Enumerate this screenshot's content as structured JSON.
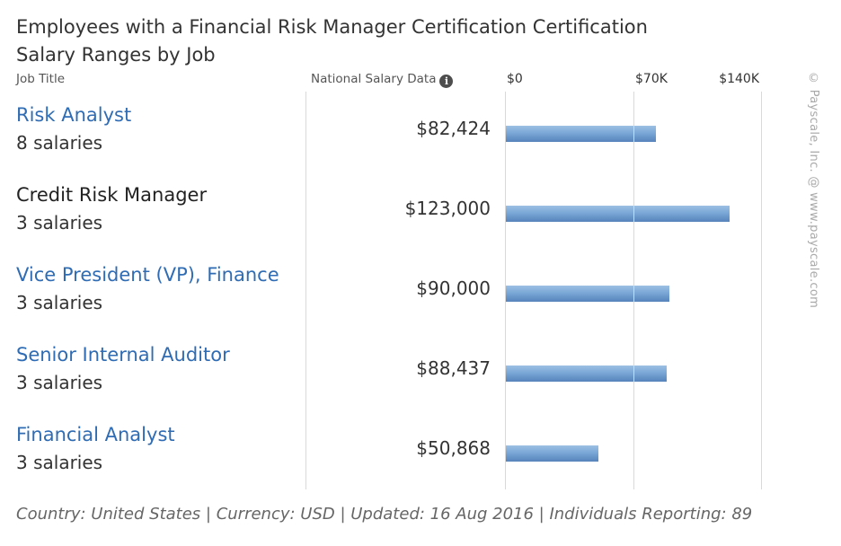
{
  "chart_data": {
    "type": "bar",
    "title": "Employees with a Financial Risk Manager Certification Certification",
    "subtitle": "Salary Ranges by Job",
    "column_headers": {
      "job": "Job Title",
      "salary": "National Salary Data"
    },
    "categories": [
      "Risk Analyst",
      "Credit Risk Manager",
      "Vice President (VP), Finance",
      "Senior Internal Auditor",
      "Financial Analyst"
    ],
    "counts": [
      "8 salaries",
      "3 salaries",
      "3 salaries",
      "3 salaries",
      "3 salaries"
    ],
    "linked": [
      true,
      false,
      true,
      true,
      true
    ],
    "values": [
      82424,
      123000,
      90000,
      88437,
      50868
    ],
    "value_labels": [
      "$82,424",
      "$123,000",
      "$90,000",
      "$88,437",
      "$50,868"
    ],
    "xlim": [
      0,
      140000
    ],
    "x_ticks": [
      0,
      70000,
      140000
    ],
    "x_tick_labels": [
      "$0",
      "$70K",
      "$140K"
    ],
    "grid": true,
    "bar_color": "#6e9bd0",
    "footer": "Country: United States | Currency: USD | Updated: 16 Aug 2016 | Individuals Reporting: 89",
    "credit": "© Payscale, Inc. @ www.payscale.com"
  }
}
